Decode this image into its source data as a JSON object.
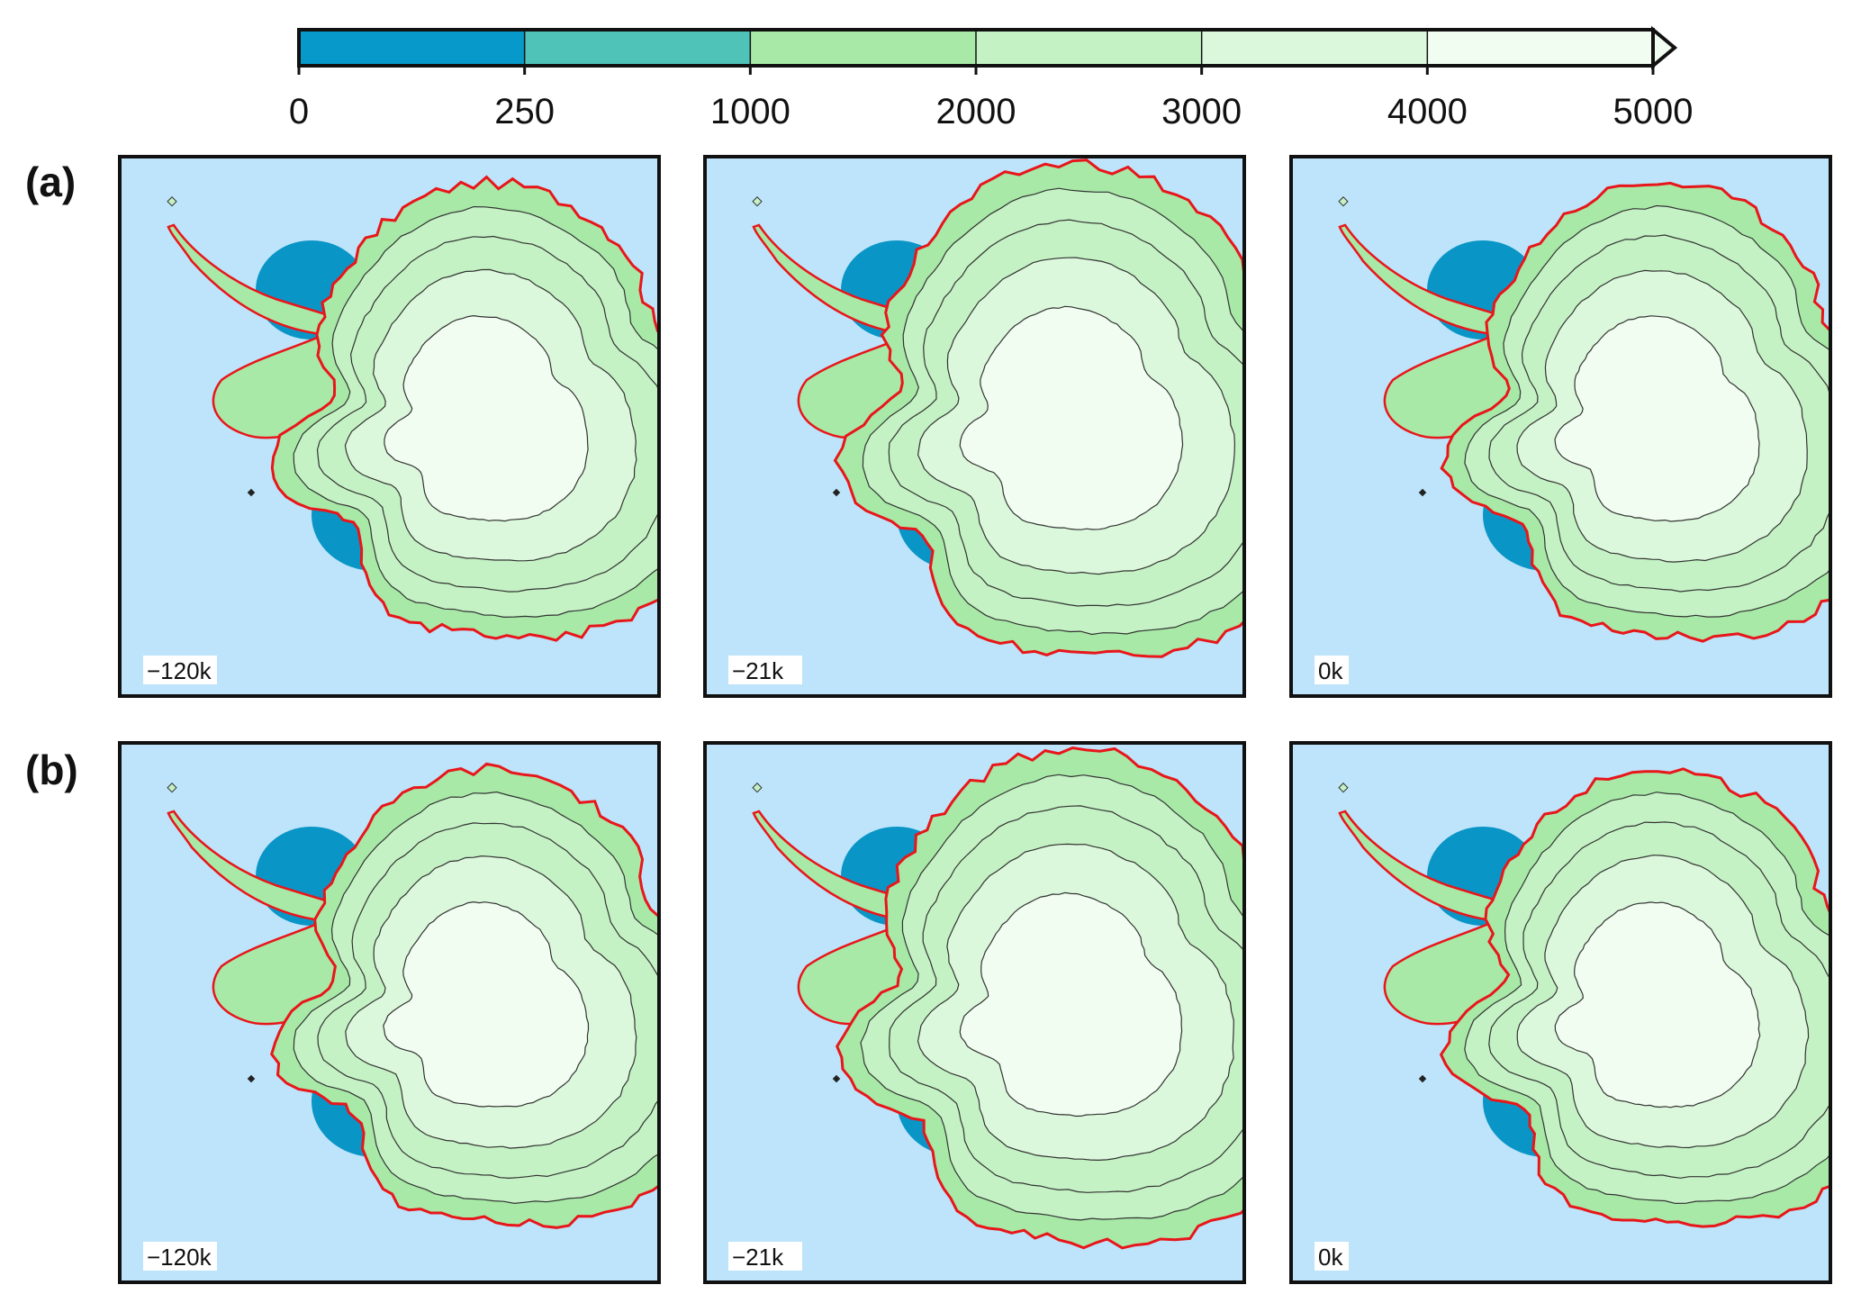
{
  "colorbar": {
    "colors": [
      "#0699c9",
      "#4fc3b8",
      "#a8e9a8",
      "#c4f2c4",
      "#dcf8dc",
      "#f1fdf1"
    ],
    "tick_labels": [
      "0",
      "250",
      "1000",
      "2000",
      "3000",
      "4000",
      "5000"
    ]
  },
  "rows": [
    {
      "label": "(a)",
      "panels": [
        {
          "time": "−120k"
        },
        {
          "time": "−21k"
        },
        {
          "time": "0k"
        }
      ]
    },
    {
      "label": "(b)",
      "panels": [
        {
          "time": "−120k"
        },
        {
          "time": "−21k"
        },
        {
          "time": "0k"
        }
      ]
    }
  ],
  "colors": {
    "ocean": "#bde4fa",
    "shelf": "#0a95c7",
    "grounding_line": "#e8161a",
    "contour": "#333333",
    "frame": "#111111"
  }
}
